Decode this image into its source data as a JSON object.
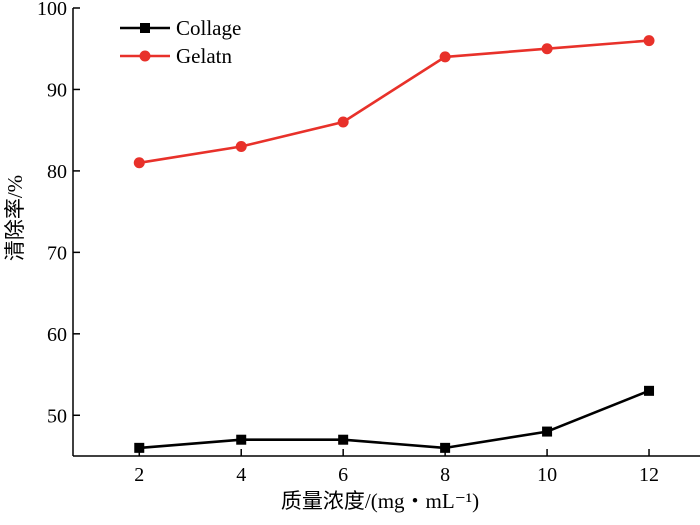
{
  "chart_data": {
    "type": "line",
    "title": "",
    "xlabel": "质量浓度/(mg・mL⁻¹)",
    "ylabel": "清除率/%",
    "x": [
      2,
      4,
      6,
      8,
      10,
      12
    ],
    "xticks": [
      2,
      4,
      6,
      8,
      10,
      12
    ],
    "yticks": [
      50,
      60,
      70,
      80,
      90,
      100
    ],
    "xlim": [
      0.7,
      13.0
    ],
    "ylim": [
      45,
      100
    ],
    "grid": false,
    "legend_position": "top-left",
    "series": [
      {
        "name": "Collage",
        "color": "#000000",
        "marker": "square",
        "values": [
          46,
          47,
          47,
          46,
          48,
          53
        ]
      },
      {
        "name": "Gelatn",
        "color": "#e8312a",
        "marker": "circle",
        "values": [
          81,
          83,
          86,
          94,
          95,
          96
        ]
      }
    ]
  }
}
